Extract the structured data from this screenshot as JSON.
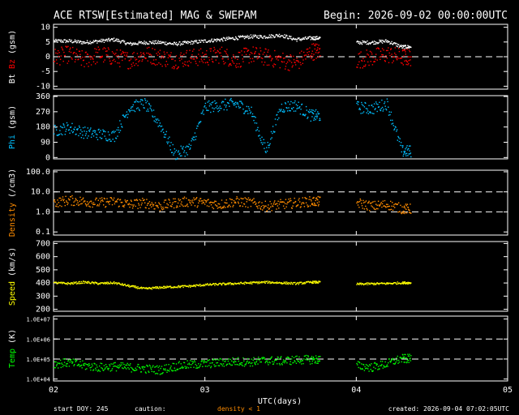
{
  "header": {
    "title": "ACE RTSW[Estimated] MAG & SWEPAM",
    "begin": "Begin: 2026-09-02 00:00:00UTC"
  },
  "footer": {
    "start_doy": "start DOY: 245",
    "caution_label": "caution:",
    "caution_value": "density < 1",
    "created": "created: 2026-09-04 07:02:05UTC"
  },
  "colors": {
    "background": "#000000",
    "axes": "#ffffff",
    "bt": "#ffffff",
    "bz": "#ff0000",
    "phi": "#00bfff",
    "density": "#ff8c00",
    "speed": "#ffff00",
    "temp": "#00ff00",
    "caution": "#ff8c00"
  },
  "chart_data": {
    "type": "scatter",
    "xlabel": "UTC(days)",
    "xlim": [
      2,
      5
    ],
    "xticks": [
      2,
      3,
      4,
      5
    ],
    "xtick_labels": [
      "02",
      "03",
      "04",
      "05"
    ],
    "panels": [
      {
        "id": "mag",
        "ylabel_parts": [
          {
            "text": "Bt",
            "color": "#ffffff"
          },
          {
            "text": " Bz",
            "color": "#ff0000"
          },
          {
            "text": " (gsm)",
            "color": "#ffffff"
          }
        ],
        "scale": "linear",
        "ylim": [
          -11,
          11
        ],
        "yticks": [
          10,
          5,
          0,
          -5,
          -10
        ],
        "ytick_labels": [
          "10",
          "5",
          "0",
          "-5",
          "-10"
        ],
        "dashed": [
          0
        ],
        "series": [
          {
            "name": "Bt",
            "color": "#ffffff",
            "x": [
              2.0,
              2.1,
              2.2,
              2.3,
              2.4,
              2.5,
              2.6,
              2.7,
              2.8,
              2.9,
              3.0,
              3.1,
              3.2,
              3.3,
              3.4,
              3.5,
              3.6,
              3.7,
              4.0,
              4.1,
              4.2,
              4.3
            ],
            "y": [
              5.5,
              5.5,
              5.0,
              5.5,
              6.0,
              4.5,
              5.0,
              5.0,
              4.5,
              5.0,
              5.5,
              6.0,
              6.5,
              7.0,
              7.0,
              7.5,
              6.0,
              6.5,
              5.0,
              5.0,
              5.5,
              3.5
            ],
            "noise": 0.6
          },
          {
            "name": "Bz",
            "color": "#ff0000",
            "x": [
              2.0,
              2.1,
              2.2,
              2.3,
              2.4,
              2.5,
              2.6,
              2.7,
              2.8,
              2.9,
              3.0,
              3.1,
              3.2,
              3.3,
              3.4,
              3.5,
              3.6,
              3.7,
              4.0,
              4.1,
              4.2,
              4.3
            ],
            "y": [
              0,
              1,
              -1,
              1,
              0,
              -1,
              1,
              0,
              -1,
              0,
              0,
              1,
              -1,
              1,
              0,
              -1,
              -2,
              2,
              -1,
              0,
              1,
              0
            ],
            "noise": 3.0
          }
        ]
      },
      {
        "id": "phi",
        "ylabel_parts": [
          {
            "text": "Phi",
            "color": "#00bfff"
          },
          {
            "text": " (gsm)",
            "color": "#ffffff"
          }
        ],
        "scale": "linear",
        "ylim": [
          -8,
          365
        ],
        "yticks": [
          360,
          270,
          180,
          90,
          0
        ],
        "ytick_labels": [
          "360",
          "270",
          "180",
          "90",
          "0"
        ],
        "dashed": [],
        "series": [
          {
            "name": "Phi",
            "color": "#00bfff",
            "x": [
              2.0,
              2.1,
              2.2,
              2.3,
              2.4,
              2.5,
              2.6,
              2.7,
              2.8,
              2.9,
              3.0,
              3.1,
              3.2,
              3.3,
              3.4,
              3.5,
              3.6,
              3.7,
              4.0,
              4.1,
              4.2,
              4.3
            ],
            "y": [
              160,
              180,
              150,
              140,
              130,
              300,
              320,
              200,
              20,
              60,
              300,
              310,
              320,
              280,
              40,
              300,
              310,
              250,
              300,
              290,
              320,
              40
            ],
            "noise": 35
          }
        ]
      },
      {
        "id": "density",
        "ylabel_parts": [
          {
            "text": "Density",
            "color": "#ff8c00"
          },
          {
            "text": " (/cm3)",
            "color": "#ffffff"
          }
        ],
        "scale": "log",
        "ylim": [
          0.07,
          120
        ],
        "yticks": [
          100,
          10,
          1,
          0.1
        ],
        "ytick_labels": [
          "100.0",
          "10.0",
          "1.0",
          "0.1"
        ],
        "dashed": [
          10,
          1
        ],
        "series": [
          {
            "name": "Density",
            "color": "#ff8c00",
            "x": [
              2.0,
              2.1,
              2.2,
              2.3,
              2.4,
              2.5,
              2.6,
              2.7,
              2.8,
              2.9,
              3.0,
              3.1,
              3.2,
              3.3,
              3.4,
              3.5,
              3.6,
              3.7,
              4.0,
              4.1,
              4.2,
              4.3
            ],
            "y": [
              3.0,
              4.0,
              3.5,
              3.0,
              3.5,
              2.5,
              3.0,
              2.0,
              3.0,
              3.5,
              3.0,
              2.5,
              3.5,
              3.0,
              2.0,
              2.5,
              3.0,
              3.5,
              3.0,
              2.0,
              2.5,
              1.5
            ],
            "noise": 0.25
          }
        ]
      },
      {
        "id": "speed",
        "ylabel_parts": [
          {
            "text": "Speed",
            "color": "#ffff00"
          },
          {
            "text": " (km/s)",
            "color": "#ffffff"
          }
        ],
        "scale": "linear",
        "ylim": [
          185,
          715
        ],
        "yticks": [
          700,
          600,
          500,
          400,
          300,
          200
        ],
        "ytick_labels": [
          "700",
          "600",
          "500",
          "400",
          "300",
          "200"
        ],
        "dashed": [],
        "series": [
          {
            "name": "Speed",
            "color": "#ffff00",
            "x": [
              2.0,
              2.1,
              2.2,
              2.3,
              2.4,
              2.5,
              2.6,
              2.7,
              2.8,
              2.9,
              3.0,
              3.1,
              3.2,
              3.3,
              3.4,
              3.5,
              3.6,
              3.7,
              4.0,
              4.1,
              4.2,
              4.3
            ],
            "y": [
              405,
              400,
              410,
              400,
              405,
              380,
              360,
              370,
              375,
              380,
              390,
              395,
              400,
              405,
              410,
              405,
              400,
              410,
              395,
              398,
              400,
              405
            ],
            "noise": 8
          }
        ]
      },
      {
        "id": "temp",
        "ylabel_parts": [
          {
            "text": "Temp",
            "color": "#00ff00"
          },
          {
            "text": " (K)",
            "color": "#ffffff"
          }
        ],
        "scale": "log",
        "ylim": [
          8000,
          14000000
        ],
        "yticks": [
          10000000,
          1000000,
          100000,
          10000
        ],
        "ytick_labels": [
          "1.0E+07",
          "1.0E+06",
          "1.0E+05",
          "1.0E+04"
        ],
        "dashed": [
          1000000,
          100000
        ],
        "series": [
          {
            "name": "Temp",
            "color": "#00ff00",
            "x": [
              2.0,
              2.1,
              2.2,
              2.3,
              2.4,
              2.5,
              2.6,
              2.7,
              2.8,
              2.9,
              3.0,
              3.1,
              3.2,
              3.3,
              3.4,
              3.5,
              3.6,
              3.7,
              4.0,
              4.1,
              4.2,
              4.3
            ],
            "y": [
              60000,
              70000,
              50000,
              40000,
              45000,
              40000,
              35000,
              30000,
              45000,
              55000,
              60000,
              70000,
              80000,
              75000,
              90000,
              85000,
              95000,
              100000,
              50000,
              40000,
              60000,
              110000
            ],
            "noise": 0.22
          }
        ]
      }
    ]
  }
}
